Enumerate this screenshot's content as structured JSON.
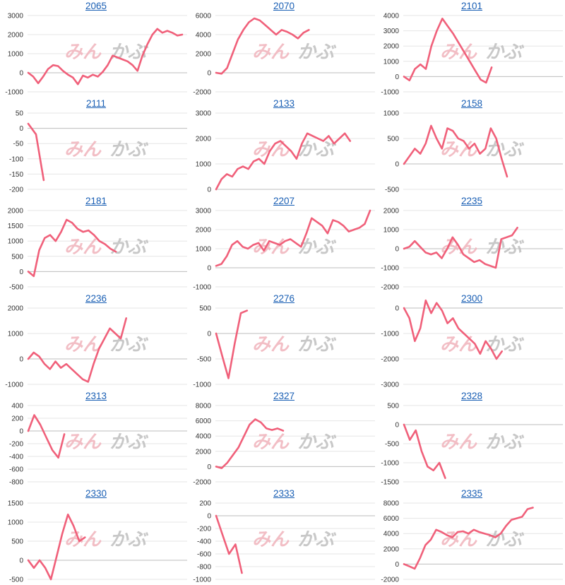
{
  "watermark_icon": "minkabu-logo",
  "line_color": "#f0607a",
  "link_color": "#1a5fb4",
  "chart_data": [
    {
      "type": "line",
      "title": "2065",
      "yticks": [
        3000,
        2000,
        1000,
        0,
        -1000
      ],
      "ylim": [
        -1000,
        3000
      ],
      "values": [
        0,
        -200,
        -550,
        -200,
        200,
        400,
        350,
        100,
        -100,
        -250,
        -600,
        -150,
        -250,
        -100,
        -200,
        50,
        400,
        900,
        800,
        700,
        600,
        400,
        100,
        900,
        1500,
        2000,
        2300,
        2100,
        2200,
        2100,
        1950,
        2000
      ]
    },
    {
      "type": "line",
      "title": "2070",
      "yticks": [
        6000,
        4000,
        2000,
        0,
        -2000
      ],
      "ylim": [
        -2000,
        6000
      ],
      "values": [
        0,
        -100,
        500,
        2000,
        3500,
        4500,
        5300,
        5700,
        5500,
        5000,
        4500,
        4000,
        4500,
        4300,
        4000,
        3600,
        4200,
        4500
      ]
    },
    {
      "type": "line",
      "title": "2101",
      "yticks": [
        4000,
        3000,
        2000,
        1000,
        0,
        -1000
      ],
      "ylim": [
        -1000,
        4000
      ],
      "values": [
        0,
        -250,
        500,
        800,
        500,
        2000,
        3000,
        3800,
        3300,
        2800,
        2200,
        1600,
        1000,
        400,
        -200,
        -400,
        600
      ]
    },
    {
      "type": "line",
      "title": "2111",
      "yticks": [
        50,
        0,
        -50,
        -100,
        -150,
        -200
      ],
      "ylim": [
        -200,
        50
      ],
      "values": [
        15,
        -20,
        -170
      ]
    },
    {
      "type": "line",
      "title": "2133",
      "yticks": [
        3000,
        2000,
        1000,
        0
      ],
      "ylim": [
        0,
        3000
      ],
      "values": [
        0,
        400,
        600,
        500,
        800,
        900,
        800,
        1100,
        1200,
        1000,
        1500,
        1800,
        1900,
        1700,
        1500,
        1200,
        1800,
        2200,
        2100,
        2000,
        1900,
        2100,
        1800,
        2000,
        2200,
        1900
      ]
    },
    {
      "type": "line",
      "title": "2158",
      "yticks": [
        1000,
        500,
        0,
        -500
      ],
      "ylim": [
        -500,
        1000
      ],
      "values": [
        0,
        150,
        300,
        200,
        400,
        750,
        500,
        300,
        700,
        650,
        500,
        450,
        300,
        400,
        200,
        300,
        700,
        500,
        100,
        -250
      ]
    },
    {
      "type": "line",
      "title": "2181",
      "yticks": [
        2000,
        1500,
        1000,
        500,
        0,
        -500
      ],
      "ylim": [
        -500,
        2000
      ],
      "values": [
        0,
        -150,
        700,
        1100,
        1200,
        1000,
        1300,
        1700,
        1600,
        1400,
        1300,
        1350,
        1200,
        1000,
        900,
        750,
        650
      ]
    },
    {
      "type": "line",
      "title": "2207",
      "yticks": [
        3000,
        2000,
        1000,
        0,
        -1000
      ],
      "ylim": [
        -1000,
        3000
      ],
      "values": [
        100,
        200,
        600,
        1200,
        1400,
        1100,
        1000,
        1200,
        1300,
        900,
        1400,
        1300,
        1200,
        1400,
        1500,
        1300,
        1100,
        1800,
        2600,
        2400,
        2200,
        1800,
        2500,
        2400,
        2200,
        1900,
        2000,
        2100,
        2300,
        3000
      ]
    },
    {
      "type": "line",
      "title": "2235",
      "yticks": [
        2000,
        1000,
        0,
        -1000,
        -2000
      ],
      "ylim": [
        -2000,
        2000
      ],
      "values": [
        0,
        100,
        400,
        100,
        -200,
        -300,
        -200,
        -500,
        0,
        600,
        200,
        -300,
        -500,
        -700,
        -600,
        -800,
        -900,
        -1000,
        500,
        600,
        700,
        1100
      ]
    },
    {
      "type": "line",
      "title": "2236",
      "yticks": [
        2000,
        1000,
        0,
        -1000
      ],
      "ylim": [
        -1000,
        2000
      ],
      "values": [
        0,
        250,
        100,
        -200,
        -400,
        -100,
        -350,
        -200,
        -400,
        -600,
        -800,
        -900,
        -200,
        400,
        800,
        1200,
        1000,
        800,
        1600
      ]
    },
    {
      "type": "line",
      "title": "2276",
      "yticks": [
        500,
        0,
        -500,
        -1000
      ],
      "ylim": [
        -1000,
        500
      ],
      "values": [
        0,
        -450,
        -880,
        -200,
        400,
        450
      ]
    },
    {
      "type": "line",
      "title": "2300",
      "yticks": [
        0,
        -1000,
        -2000,
        -3000
      ],
      "ylim": [
        -3000,
        0
      ],
      "values": [
        0,
        -400,
        -1300,
        -800,
        300,
        -200,
        200,
        -100,
        -600,
        -400,
        -800,
        -1000,
        -1200,
        -1400,
        -1800,
        -1300,
        -1600,
        -2000,
        -1700
      ]
    },
    {
      "type": "line",
      "title": "2313",
      "yticks": [
        400,
        200,
        0,
        -200,
        -400,
        -600,
        -800
      ],
      "ylim": [
        -800,
        400
      ],
      "values": [
        0,
        250,
        100,
        -100,
        -300,
        -420,
        -50
      ]
    },
    {
      "type": "line",
      "title": "2327",
      "yticks": [
        8000,
        6000,
        4000,
        2000,
        0,
        -2000
      ],
      "ylim": [
        -2000,
        8000
      ],
      "values": [
        0,
        -200,
        500,
        1500,
        2500,
        4000,
        5500,
        6200,
        5800,
        5000,
        4800,
        5000,
        4700
      ]
    },
    {
      "type": "line",
      "title": "2328",
      "yticks": [
        500,
        0,
        -500,
        -1000,
        -1500
      ],
      "ylim": [
        -1500,
        500
      ],
      "values": [
        0,
        -400,
        -150,
        -700,
        -1100,
        -1200,
        -1000,
        -1400
      ]
    },
    {
      "type": "line",
      "title": "2330",
      "yticks": [
        1500,
        1000,
        500,
        0,
        -500
      ],
      "ylim": [
        -500,
        1500
      ],
      "values": [
        0,
        -200,
        0,
        -200,
        -500,
        100,
        700,
        1200,
        900,
        500,
        600
      ]
    },
    {
      "type": "line",
      "title": "2333",
      "yticks": [
        200,
        0,
        -200,
        -400,
        -600,
        -800,
        -1000
      ],
      "ylim": [
        -1000,
        200
      ],
      "values": [
        0,
        -300,
        -600,
        -450,
        -900
      ]
    },
    {
      "type": "line",
      "title": "2335",
      "yticks": [
        8000,
        6000,
        4000,
        2000,
        0,
        -2000
      ],
      "ylim": [
        -2000,
        8000
      ],
      "values": [
        0,
        -300,
        -600,
        800,
        2500,
        3200,
        4500,
        4200,
        3800,
        3500,
        4200,
        4300,
        4000,
        4500,
        4200,
        4000,
        3800,
        3500,
        4000,
        5000,
        5800,
        6000,
        6200,
        7200,
        7400
      ]
    }
  ]
}
